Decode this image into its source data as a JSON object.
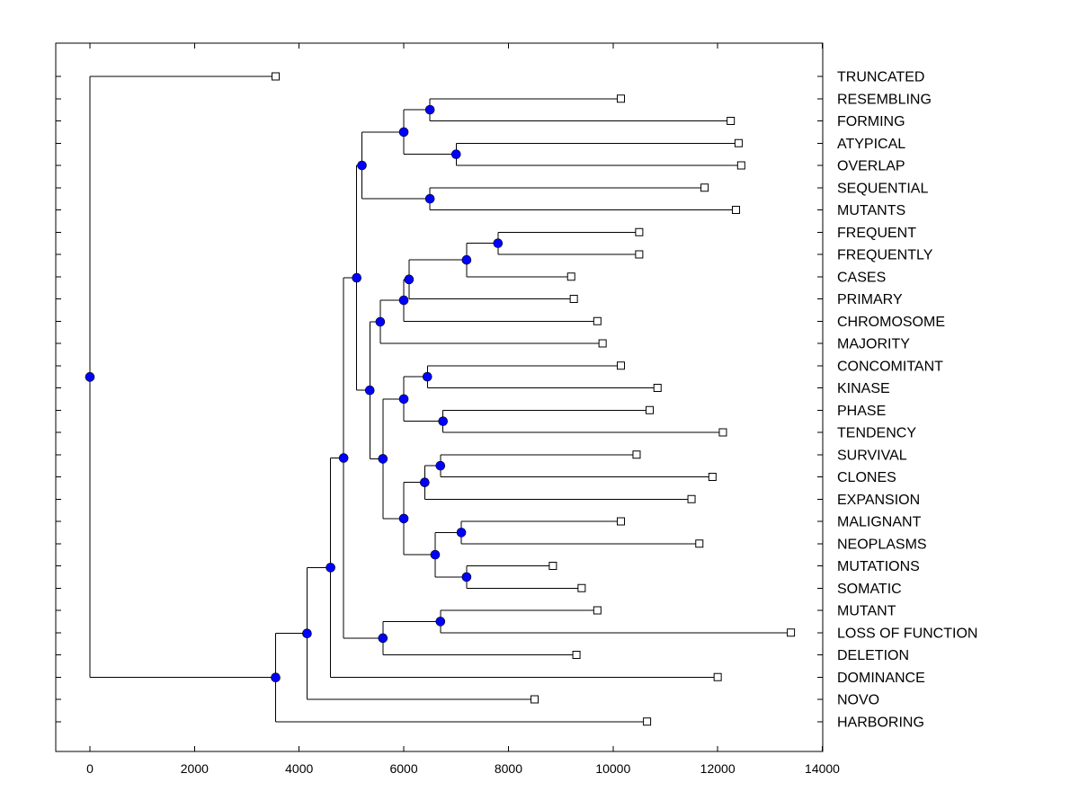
{
  "chart_data": {
    "type": "dendrogram",
    "title": "",
    "xlabel": "",
    "ylabel": "",
    "xlim": [
      -650,
      14000
    ],
    "xticks": [
      0,
      2000,
      4000,
      6000,
      8000,
      10000,
      12000,
      14000
    ],
    "tick_labels": [
      "0",
      "2000",
      "4000",
      "6000",
      "8000",
      "10000",
      "12000",
      "14000"
    ],
    "leaf_order": [
      "TRUNCATED",
      "RESEMBLING",
      "FORMING",
      "ATYPICAL",
      "OVERLAP",
      "SEQUENTIAL",
      "MUTANTS",
      "FREQUENT",
      "FREQUENTLY",
      "CASES",
      "PRIMARY",
      "CHROMOSOME",
      "MAJORITY",
      "CONCOMITANT",
      "KINASE",
      "PHASE",
      "TENDENCY",
      "SURVIVAL",
      "CLONES",
      "EXPANSION",
      "MALIGNANT",
      "NEOPLASMS",
      "MUTATIONS",
      "SOMATIC",
      "MUTANT",
      "LOSS OF FUNCTION",
      "DELETION",
      "DOMINANCE",
      "NOVO",
      "HARBORING"
    ],
    "leaves": [
      {
        "label": "TRUNCATED",
        "x": 3550
      },
      {
        "label": "RESEMBLING",
        "x": 10150
      },
      {
        "label": "FORMING",
        "x": 12250
      },
      {
        "label": "ATYPICAL",
        "x": 12400
      },
      {
        "label": "OVERLAP",
        "x": 12450
      },
      {
        "label": "SEQUENTIAL",
        "x": 11750
      },
      {
        "label": "MUTANTS",
        "x": 12350
      },
      {
        "label": "FREQUENT",
        "x": 10500
      },
      {
        "label": "FREQUENTLY",
        "x": 10500
      },
      {
        "label": "CASES",
        "x": 9200
      },
      {
        "label": "PRIMARY",
        "x": 9250
      },
      {
        "label": "CHROMOSOME",
        "x": 9700
      },
      {
        "label": "MAJORITY",
        "x": 9800
      },
      {
        "label": "CONCOMITANT",
        "x": 10150
      },
      {
        "label": "KINASE",
        "x": 10850
      },
      {
        "label": "PHASE",
        "x": 10700
      },
      {
        "label": "TENDENCY",
        "x": 12100
      },
      {
        "label": "SURVIVAL",
        "x": 10450
      },
      {
        "label": "CLONES",
        "x": 11900
      },
      {
        "label": "EXPANSION",
        "x": 11500
      },
      {
        "label": "MALIGNANT",
        "x": 10150
      },
      {
        "label": "NEOPLASMS",
        "x": 11650
      },
      {
        "label": "MUTATIONS",
        "x": 8850
      },
      {
        "label": "SOMATIC",
        "x": 9400
      },
      {
        "label": "MUTANT",
        "x": 9700
      },
      {
        "label": "LOSS OF FUNCTION",
        "x": 13400
      },
      {
        "label": "DELETION",
        "x": 9300
      },
      {
        "label": "DOMINANCE",
        "x": 12000
      },
      {
        "label": "NOVO",
        "x": 8500
      },
      {
        "label": "HARBORING",
        "x": 10650
      }
    ],
    "merges": [
      {
        "id": "n1",
        "x": 6500,
        "children": [
          "RESEMBLING",
          "FORMING"
        ]
      },
      {
        "id": "n2",
        "x": 7000,
        "children": [
          "ATYPICAL",
          "OVERLAP"
        ]
      },
      {
        "id": "n3",
        "x": 6000,
        "children": [
          "n1",
          "n2"
        ]
      },
      {
        "id": "n4",
        "x": 6500,
        "children": [
          "SEQUENTIAL",
          "MUTANTS"
        ]
      },
      {
        "id": "n5",
        "x": 5200,
        "children": [
          "n3",
          "n4"
        ]
      },
      {
        "id": "n6",
        "x": 7800,
        "children": [
          "FREQUENT",
          "FREQUENTLY"
        ]
      },
      {
        "id": "n7",
        "x": 7200,
        "children": [
          "n6",
          "CASES"
        ]
      },
      {
        "id": "n8",
        "x": 6100,
        "children": [
          "n7",
          "PRIMARY"
        ]
      },
      {
        "id": "n9",
        "x": 6000,
        "children": [
          "n8",
          "CHROMOSOME"
        ]
      },
      {
        "id": "n10",
        "x": 5550,
        "children": [
          "n9",
          "MAJORITY"
        ]
      },
      {
        "id": "n11",
        "x": 6450,
        "children": [
          "CONCOMITANT",
          "KINASE"
        ]
      },
      {
        "id": "n12",
        "x": 6750,
        "children": [
          "PHASE",
          "TENDENCY"
        ]
      },
      {
        "id": "n13",
        "x": 6000,
        "children": [
          "n11",
          "n12"
        ]
      },
      {
        "id": "n14",
        "x": 6700,
        "children": [
          "SURVIVAL",
          "CLONES"
        ]
      },
      {
        "id": "n15",
        "x": 6400,
        "children": [
          "n14",
          "EXPANSION"
        ]
      },
      {
        "id": "n16",
        "x": 7100,
        "children": [
          "MALIGNANT",
          "NEOPLASMS"
        ]
      },
      {
        "id": "n17",
        "x": 7200,
        "children": [
          "MUTATIONS",
          "SOMATIC"
        ]
      },
      {
        "id": "n18",
        "x": 6600,
        "children": [
          "n16",
          "n17"
        ]
      },
      {
        "id": "n19",
        "x": 6000,
        "children": [
          "n15",
          "n18"
        ]
      },
      {
        "id": "n20",
        "x": 5600,
        "children": [
          "n13",
          "n19"
        ]
      },
      {
        "id": "n21",
        "x": 5350,
        "children": [
          "n10",
          "n20"
        ]
      },
      {
        "id": "n22",
        "x": 5100,
        "children": [
          "n5",
          "n21"
        ]
      },
      {
        "id": "n23",
        "x": 6700,
        "children": [
          "MUTANT",
          "LOSS OF FUNCTION"
        ]
      },
      {
        "id": "n24",
        "x": 5600,
        "children": [
          "n23",
          "DELETION"
        ]
      },
      {
        "id": "n25",
        "x": 4850,
        "children": [
          "n22",
          "n24"
        ]
      },
      {
        "id": "n26",
        "x": 4600,
        "children": [
          "n25",
          "DOMINANCE"
        ]
      },
      {
        "id": "n27",
        "x": 4150,
        "children": [
          "n26",
          "NOVO"
        ]
      },
      {
        "id": "n28",
        "x": 3550,
        "children": [
          "n27",
          "HARBORING"
        ]
      },
      {
        "id": "n29",
        "x": 0,
        "children": [
          "TRUNCATED",
          "n28"
        ]
      }
    ],
    "colors": {
      "node_fill": "#0000ff",
      "leaf_fill": "#ffffff",
      "line": "#000000",
      "frame": "#000000"
    }
  }
}
